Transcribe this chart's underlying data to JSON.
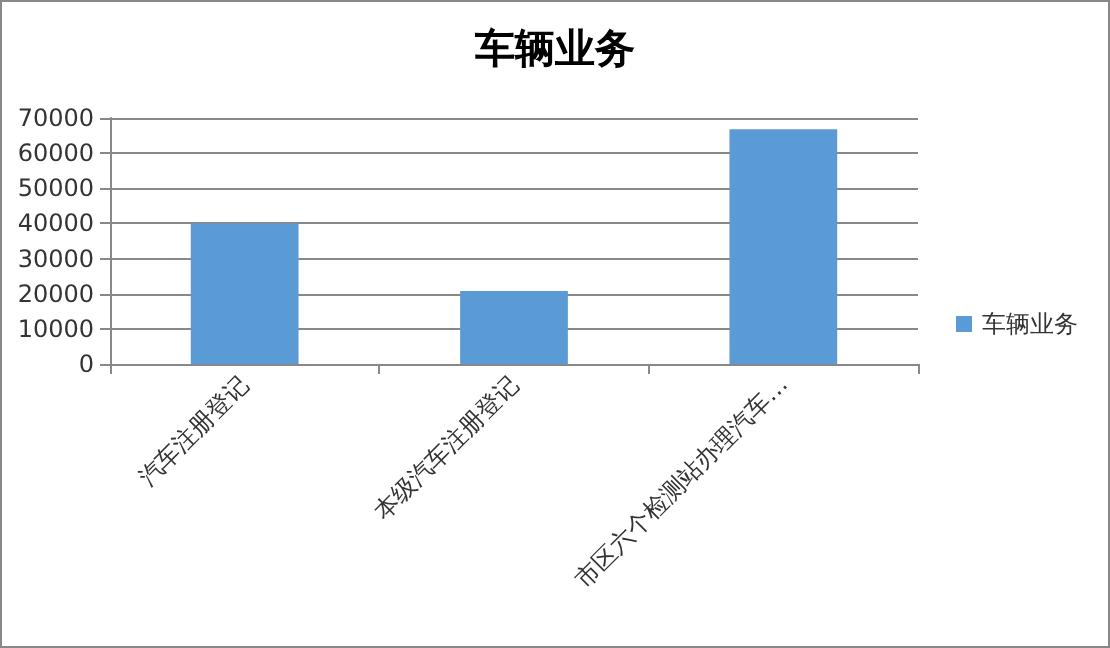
{
  "chart_data": {
    "type": "bar",
    "title": "车辆业务",
    "categories": [
      "汽车注册登记",
      "本级汽车注册登记",
      "市区六个检测站办理汽车…"
    ],
    "series": [
      {
        "name": "车辆业务",
        "color": "#5b9bd5",
        "values": [
          40000,
          20800,
          66800
        ]
      }
    ],
    "ylim": [
      0,
      70000
    ],
    "yticks": [
      0,
      10000,
      20000,
      30000,
      40000,
      50000,
      60000,
      70000
    ],
    "grid": "y",
    "legend": "right"
  }
}
